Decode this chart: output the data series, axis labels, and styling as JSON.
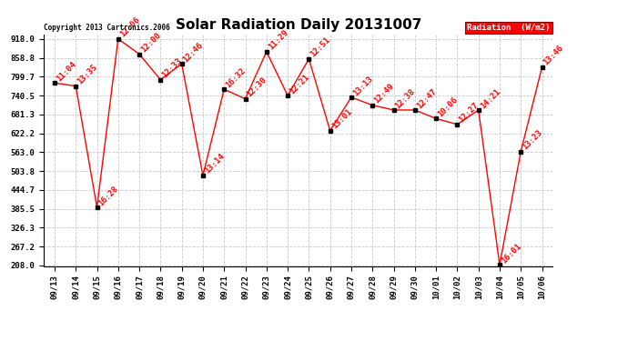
{
  "title": "Solar Radiation Daily 20131007",
  "copyright_text": "Copyright 2013 Cartronics.2006",
  "legend_label": "Radiation  (W/m2)",
  "x_labels": [
    "09/13",
    "09/14",
    "09/15",
    "09/16",
    "09/17",
    "09/18",
    "09/19",
    "09/20",
    "09/21",
    "09/22",
    "09/23",
    "09/24",
    "09/25",
    "09/26",
    "09/27",
    "09/28",
    "09/29",
    "09/30",
    "10/01",
    "10/02",
    "10/03",
    "10/04",
    "10/05",
    "10/06"
  ],
  "y_values": [
    780,
    770,
    390,
    918,
    870,
    790,
    840,
    490,
    760,
    730,
    878,
    740,
    855,
    630,
    735,
    710,
    695,
    695,
    668,
    650,
    695,
    210,
    565,
    830
  ],
  "point_labels": [
    "11:04",
    "13:35",
    "16:28",
    "12:06",
    "12:00",
    "12:33",
    "12:46",
    "13:14",
    "16:32",
    "12:30",
    "11:29",
    "12:21",
    "12:51",
    "13:01",
    "13:13",
    "12:49",
    "12:38",
    "12:47",
    "10:06",
    "12:27",
    "14:21",
    "16:01",
    "13:23",
    "13:46"
  ],
  "y_min": 208.0,
  "y_max": 918.0,
  "y_ticks": [
    208.0,
    267.2,
    326.3,
    385.5,
    444.7,
    503.8,
    563.0,
    622.2,
    681.3,
    740.5,
    799.7,
    858.8,
    918.0
  ],
  "line_color": "red",
  "marker_color": "black",
  "background_color": "#ffffff",
  "grid_color": "#c8c8c8",
  "title_fontsize": 11,
  "label_fontsize": 6.5,
  "annotation_fontsize": 6.5,
  "legend_bg": "red",
  "legend_fg": "white"
}
